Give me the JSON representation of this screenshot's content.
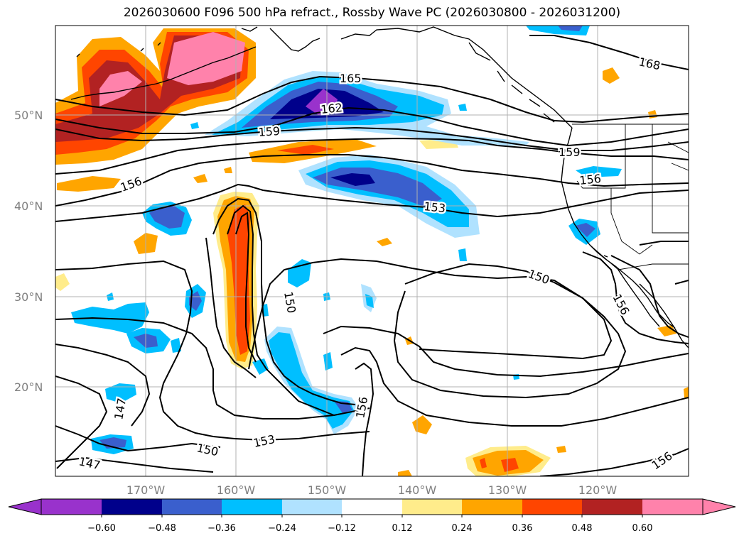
{
  "title": "2026030600 F096 500 hPa refract., Rossby Wave PC (2026030800 - 2026031200)",
  "lat_labels": [
    "50°N",
    "40°N",
    "30°N",
    "20°N"
  ],
  "lon_labels": [
    "170°W",
    "160°W",
    "150°W",
    "140°W",
    "130°W",
    "120°W"
  ],
  "colorbar": {
    "ticks": [
      "−0.60",
      "−0.48",
      "−0.36",
      "−0.24",
      "−0.12",
      "0.12",
      "0.24",
      "0.36",
      "0.48",
      "0.60"
    ],
    "colors": [
      "#9932cc",
      "#00008b",
      "#3a5fcd",
      "#00bfff",
      "#b0e2ff",
      "#ffffff",
      "#ffec8b",
      "#ffa500",
      "#ff4500",
      "#b22222",
      "#ff82ab",
      "#ff82ab"
    ]
  },
  "contour_labels": [
    "165",
    "168",
    "162",
    "159",
    "159",
    "156",
    "156",
    "153",
    "150",
    "150",
    "156",
    "156",
    "156",
    "153",
    "150",
    "147",
    "147",
    "156"
  ],
  "colors": {
    "land_line": "#000000",
    "grid": "#b0b0b0"
  }
}
